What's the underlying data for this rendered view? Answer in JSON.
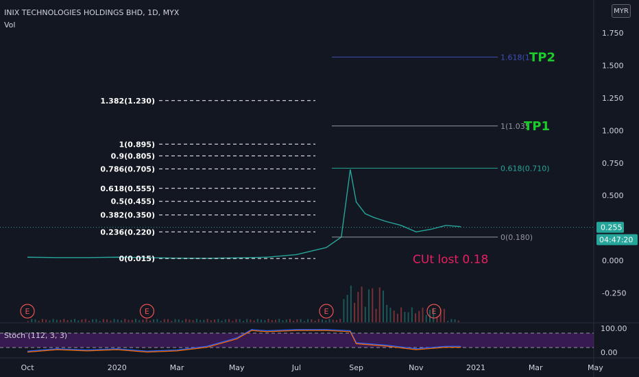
{
  "header": {
    "symbol_title": "INIX TECHNOLOGIES HOLDINGS BHD, 1D, MYX",
    "volume_label": "Vol",
    "currency": "MYR"
  },
  "colors": {
    "background": "#131722",
    "grid_text": "#d1d4dc",
    "price_line": "#26a69a",
    "candle_up": "#26a69a",
    "candle_down": "#ef5350",
    "fib_left": "#ffffff",
    "fib_right_gray": "#9598a1",
    "fib_right_teal": "#26a69a",
    "fib_right_blue": "#3f51b5",
    "target_green": "#1ccc2c",
    "annotation_red": "#e91e63",
    "stoch_band": "#7b1fa2",
    "stoch_k": "#2962ff",
    "stoch_d": "#ff6d00"
  },
  "chart_data": {
    "type": "candlestick",
    "title": "INIX TECHNOLOGIES HOLDINGS BHD, 1D, MYX",
    "price_axis": {
      "ticks": [
        "1.750",
        "1.500",
        "1.250",
        "1.000",
        "0.750",
        "0.500",
        "0.250",
        "0.000",
        "-0.250"
      ],
      "values": [
        1.75,
        1.5,
        1.25,
        1.0,
        0.75,
        0.5,
        0.25,
        0.0,
        -0.25
      ],
      "last_price": "0.255",
      "countdown": "04:47:20"
    },
    "time_axis": {
      "labels": [
        "Oct",
        "2020",
        "Mar",
        "May",
        "Jul",
        "Sep",
        "Nov",
        "2021",
        "Mar",
        "May"
      ],
      "month_index": [
        0,
        3,
        5,
        7,
        9,
        11,
        13,
        15,
        17,
        19
      ]
    },
    "price_series": {
      "month_index": [
        0,
        1,
        2,
        3,
        4,
        5,
        6,
        7,
        8,
        9,
        10,
        10.5,
        10.8,
        11,
        11.3,
        11.6,
        12,
        12.5,
        13,
        13.5,
        14,
        14.5
      ],
      "values": [
        0.025,
        0.022,
        0.022,
        0.025,
        0.022,
        0.018,
        0.017,
        0.02,
        0.025,
        0.045,
        0.1,
        0.18,
        0.7,
        0.45,
        0.36,
        0.33,
        0.3,
        0.27,
        0.22,
        0.24,
        0.27,
        0.26
      ]
    },
    "fib_left": [
      {
        "label": "1.382(1.230)",
        "value": 1.23
      },
      {
        "label": "1(0.895)",
        "value": 0.895
      },
      {
        "label": "0.9(0.805)",
        "value": 0.805
      },
      {
        "label": "0.786(0.705)",
        "value": 0.705
      },
      {
        "label": "0.618(0.555)",
        "value": 0.555
      },
      {
        "label": "0.5(0.455)",
        "value": 0.455
      },
      {
        "label": "0.382(0.350)",
        "value": 0.35
      },
      {
        "label": "0.236(0.220)",
        "value": 0.22
      },
      {
        "label": "0(0.015)",
        "value": 0.015
      }
    ],
    "fib_right": [
      {
        "label": "1.618(1.",
        "value": 1.565,
        "color": "#3f51b5"
      },
      {
        "label": "1(1.035",
        "value": 1.035,
        "color": "#9598a1"
      },
      {
        "label": "0.618(0.710)",
        "value": 0.71,
        "color": "#26a69a"
      },
      {
        "label": "0(0.180)",
        "value": 0.18,
        "color": "#9598a1"
      }
    ],
    "annotations": [
      {
        "text": "TP2",
        "value": 1.565
      },
      {
        "text": "TP1",
        "value": 1.035
      },
      {
        "text": "CUt lost 0.18",
        "value": 0.0
      }
    ],
    "earnings_markers": {
      "label": "E",
      "month_index": [
        0,
        4,
        10,
        13.6
      ]
    },
    "stochastic": {
      "label": "Stoch (112, 3, 3)",
      "ticks": [
        "100.00",
        "0.00"
      ],
      "tick_values": [
        100,
        0
      ],
      "band": [
        80,
        20
      ],
      "k_month_index": [
        0,
        1,
        2,
        3,
        4,
        5,
        6,
        7,
        7.5,
        8,
        9,
        10,
        10.8,
        11,
        12,
        13,
        14,
        14.5
      ],
      "k_values": [
        5,
        15,
        10,
        15,
        5,
        10,
        25,
        60,
        95,
        90,
        95,
        95,
        90,
        40,
        30,
        15,
        25,
        25
      ]
    }
  }
}
